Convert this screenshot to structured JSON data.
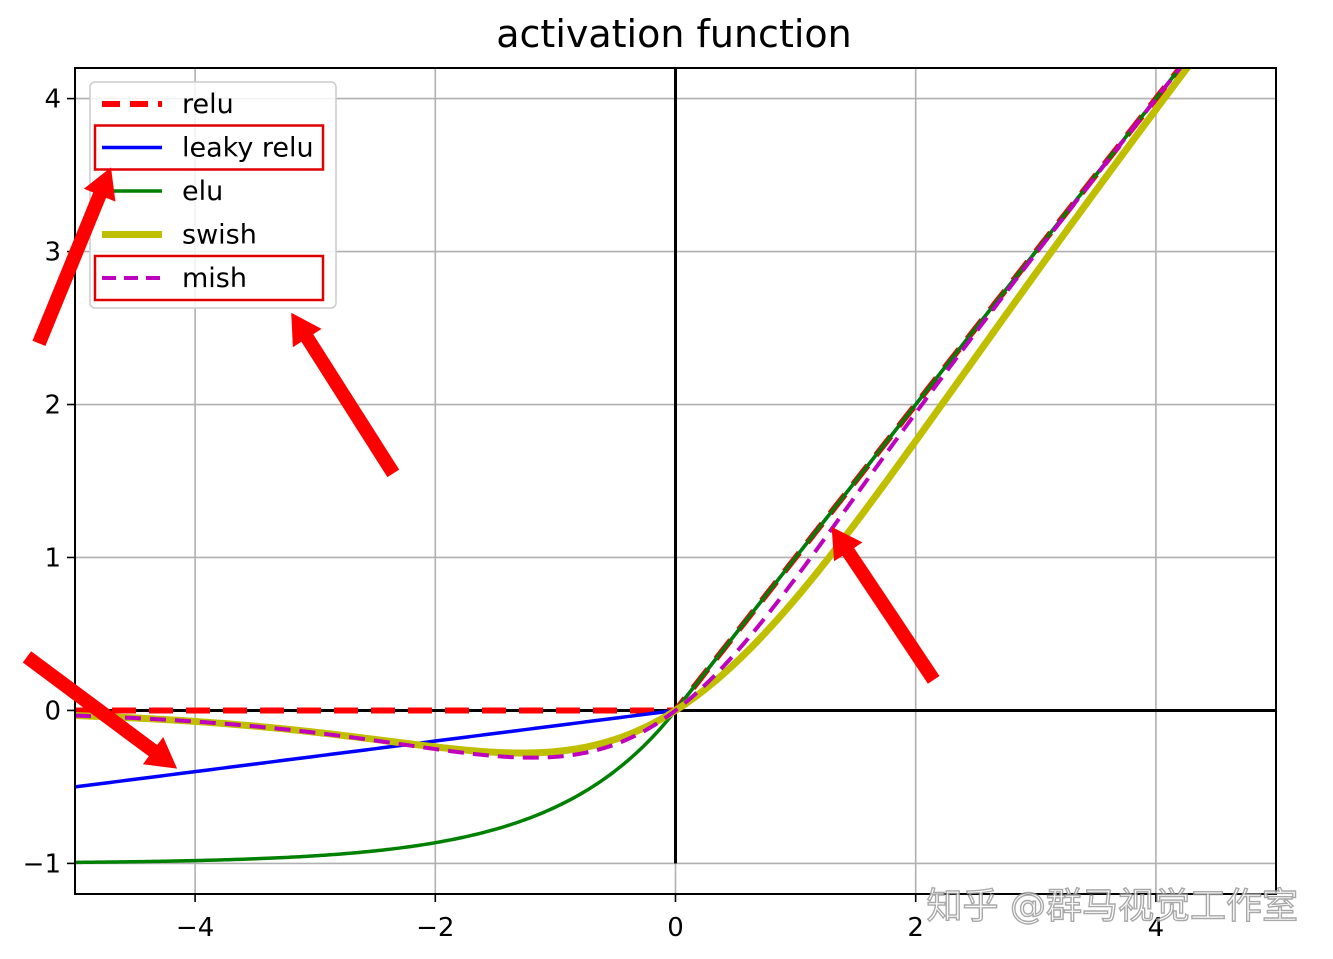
{
  "chart_data": {
    "type": "line",
    "title": "activation function",
    "xlim": [
      -5,
      5
    ],
    "ylim": [
      -1.2,
      4.2
    ],
    "x_ticks": [
      -4,
      -2,
      0,
      2,
      4
    ],
    "y_ticks": [
      -1,
      0,
      1,
      2,
      3,
      4
    ],
    "x_tick_labels": [
      "−4",
      "−2",
      "0",
      "2",
      "4"
    ],
    "y_tick_labels": [
      "−1",
      "0",
      "1",
      "2",
      "3",
      "4"
    ],
    "grid": true,
    "legend_position": "top-left",
    "series": [
      {
        "name": "relu",
        "function": "relu",
        "color": "#ff0000",
        "style": "dashed-thick"
      },
      {
        "name": "leaky relu",
        "function": "leaky_relu",
        "slope": 0.1,
        "color": "#0000ff",
        "style": "solid"
      },
      {
        "name": "elu",
        "function": "elu",
        "alpha": 1.0,
        "color": "#008000",
        "style": "solid"
      },
      {
        "name": "swish",
        "function": "swish",
        "color": "#bfbf00",
        "style": "solid-thick"
      },
      {
        "name": "mish",
        "function": "mish",
        "color": "#bf00bf",
        "style": "dashed"
      }
    ],
    "highlight_boxes": [
      "leaky relu",
      "mish"
    ],
    "annotation_arrows": [
      {
        "from": [
          -5.3,
          2.4
        ],
        "to": [
          -4.7,
          3.55
        ],
        "color": "#ff0000"
      },
      {
        "from": [
          -2.35,
          1.55
        ],
        "to": [
          -3.2,
          2.6
        ],
        "color": "#ff0000"
      },
      {
        "from": [
          -5.4,
          0.35
        ],
        "to": [
          -4.15,
          -0.38
        ],
        "color": "#ff0000"
      },
      {
        "from": [
          2.15,
          0.2
        ],
        "to": [
          1.3,
          1.2
        ],
        "color": "#ff0000"
      }
    ]
  },
  "watermark": "知乎 @群马视觉工作室"
}
